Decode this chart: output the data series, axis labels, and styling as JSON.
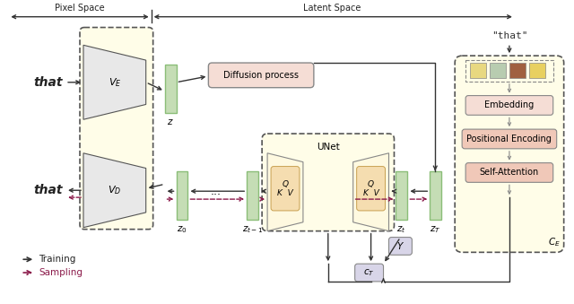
{
  "bg_color": "#ffffff",
  "pixel_space_label": "Pixel Space",
  "latent_space_label": "Latent Space",
  "that_label": "\"that\"",
  "z_label": "z",
  "z0_label": "z_0",
  "zt1_label": "z_{t-1}",
  "zt_label": "z_t",
  "zT_label": "z_T",
  "dots_label": "...",
  "Y_label": "Y",
  "cT_label": "c_T",
  "CE_label": "C_E",
  "unet_label": "UNet",
  "diffusion_label": "Diffusion process",
  "embedding_label": "Embedding",
  "posenc_label": "Positional Encoding",
  "selfattn_label": "Self-Attention",
  "VE_label": "V_E",
  "VD_label": "V_D",
  "training_label": "Training",
  "sampling_label": "Sampling",
  "yellow_fill": "#fffde8",
  "yellow_fill2": "#fef9e0",
  "green_fill": "#8bbe78",
  "green_fill_light": "#c5ddb5",
  "pink_fill": "#f5ddd5",
  "pink_fill_dark": "#f0c8b8",
  "gray_fill": "#d0cfe0",
  "box_edge": "#555555",
  "arrow_black": "#333333",
  "arrow_gray": "#888888",
  "arrow_maroon": "#8b1a4a",
  "sq_colors": [
    "#e8d880",
    "#b8ccb0",
    "#a06040",
    "#e8d060"
  ],
  "trapezoid_fill": "#d8d8d8",
  "trapezoid_fill2": "#e8e8e8"
}
